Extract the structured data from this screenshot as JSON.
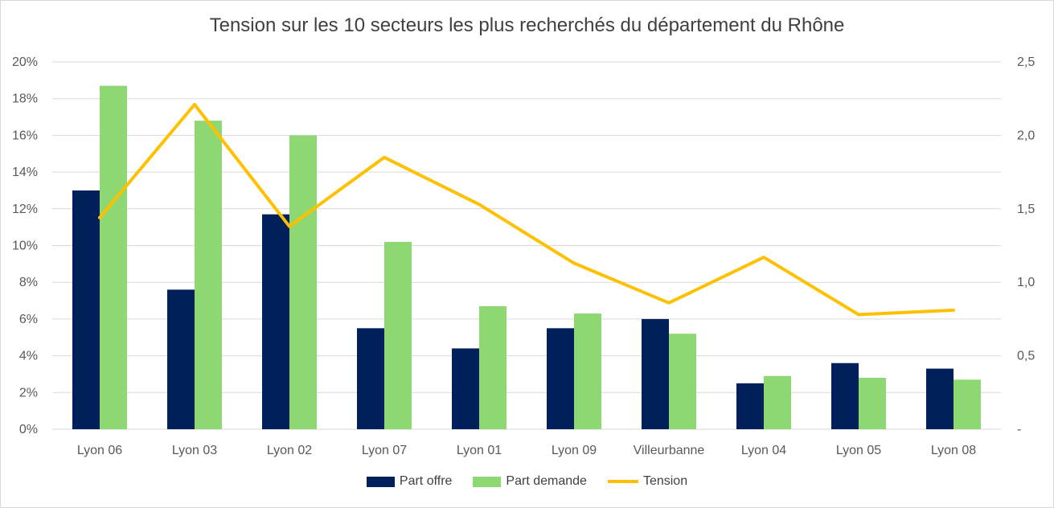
{
  "chart_data": {
    "type": "bar",
    "title": "Tension sur les 10 secteurs les plus recherchés du département du Rhône",
    "categories": [
      "Lyon 06",
      "Lyon 03",
      "Lyon 02",
      "Lyon 07",
      "Lyon 01",
      "Lyon 09",
      "Villeurbanne",
      "Lyon 04",
      "Lyon 05",
      "Lyon 08"
    ],
    "series": [
      {
        "name": "Part offre",
        "type": "bar",
        "axis": "left",
        "color": "#001f5b",
        "values": [
          13.0,
          7.6,
          11.7,
          5.5,
          4.4,
          5.5,
          6.0,
          2.5,
          3.6,
          3.3
        ]
      },
      {
        "name": "Part demande",
        "type": "bar",
        "axis": "left",
        "color": "#8ed873",
        "values": [
          18.7,
          16.8,
          16.0,
          10.2,
          6.7,
          6.3,
          5.2,
          2.9,
          2.8,
          2.7
        ]
      },
      {
        "name": "Tension",
        "type": "line",
        "axis": "right",
        "color": "#ffc000",
        "values": [
          1.44,
          2.21,
          1.38,
          1.85,
          1.53,
          1.13,
          0.86,
          1.17,
          0.78,
          0.81
        ]
      }
    ],
    "y_left": {
      "ylim": [
        0,
        20
      ],
      "ticks": [
        "0%",
        "2%",
        "4%",
        "6%",
        "8%",
        "10%",
        "12%",
        "14%",
        "16%",
        "18%",
        "20%"
      ]
    },
    "y_right": {
      "ylim": [
        0,
        2.5
      ],
      "ticks": [
        "-",
        "0,5",
        "1,0",
        "1,5",
        "2,0",
        "2,5"
      ]
    },
    "grid": true,
    "legend_position": "bottom"
  }
}
